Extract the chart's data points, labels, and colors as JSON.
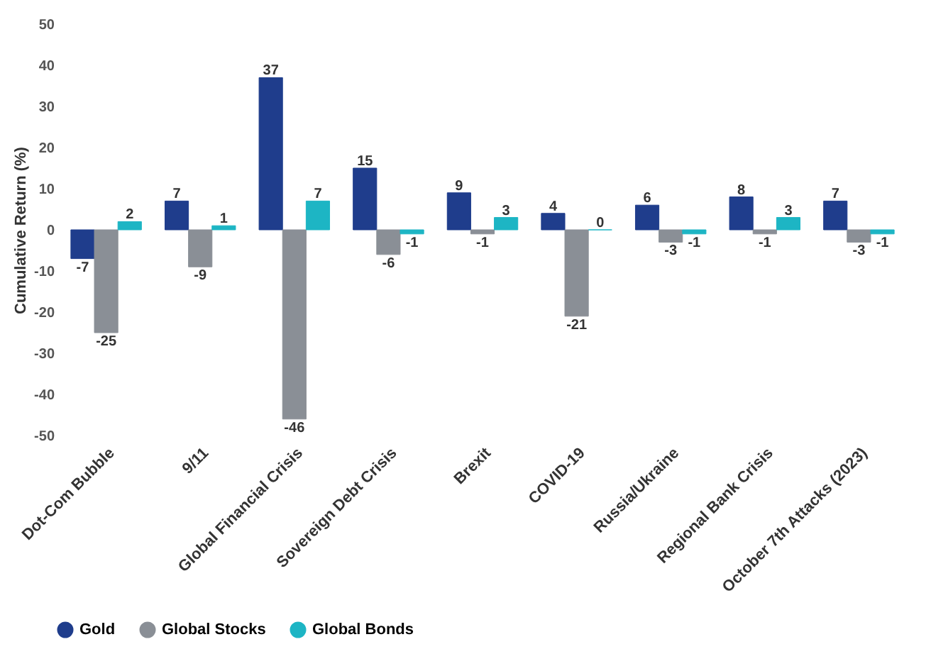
{
  "chart_data": {
    "type": "bar",
    "ylabel": "Cumulative Return (%)",
    "categories": [
      "Dot-Com Bubble",
      "9/11",
      "Global Financial Crisis",
      "Sovereign Debt Crisis",
      "Brexit",
      "COVID-19",
      "Russia/Ukraine",
      "Regional Bank Crisis",
      "October 7th Attacks (2023)"
    ],
    "series": [
      {
        "name": "Gold",
        "color": "#1f3d8c",
        "values": [
          -7,
          7,
          37,
          15,
          9,
          4,
          6,
          8,
          7
        ]
      },
      {
        "name": "Global Stocks",
        "color": "#8a8f96",
        "values": [
          -25,
          -9,
          -46,
          -6,
          -1,
          -21,
          -3,
          -1,
          -3
        ]
      },
      {
        "name": "Global Bonds",
        "color": "#1db5c4",
        "values": [
          2,
          1,
          7,
          -1,
          3,
          0,
          -1,
          3,
          -1
        ]
      }
    ],
    "ylim": [
      -50,
      50
    ],
    "yticks": [
      -50,
      -40,
      -30,
      -20,
      -10,
      0,
      10,
      20,
      30,
      40,
      50
    ],
    "data_labels": true,
    "legend": "bottom",
    "grid": false
  }
}
